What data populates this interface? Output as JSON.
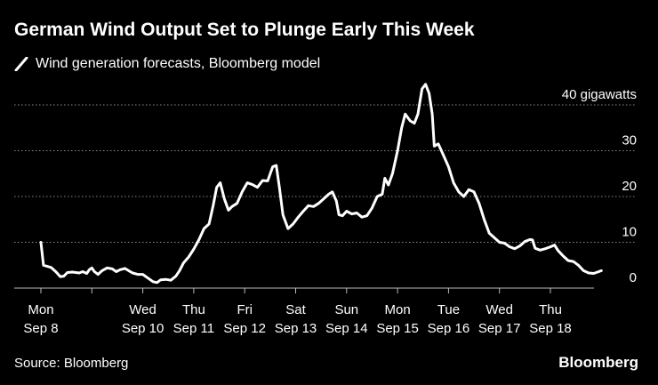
{
  "header": {
    "title": "German Wind Output Set to Plunge Early This Week",
    "legend_label": "Wind generation forecasts, Bloomberg model",
    "line_color": "#ffffff"
  },
  "footer": {
    "source": "Source: Bloomberg",
    "brand": "Bloomberg"
  },
  "chart_data": {
    "type": "line",
    "title": "German Wind Output Set to Plunge Early This Week",
    "legend": [
      "Wind generation forecasts, Bloomberg model"
    ],
    "x_unit": "days since Mon Sep 8",
    "ylim": [
      0,
      40
    ],
    "y_ticks": [
      {
        "value": 0,
        "label": "0"
      },
      {
        "value": 10,
        "label": "10"
      },
      {
        "value": 20,
        "label": "20"
      },
      {
        "value": 30,
        "label": "30"
      },
      {
        "value": 40,
        "label": "40 gigawatts"
      }
    ],
    "x_ticks": [
      {
        "value": 0,
        "line1": "Mon",
        "line2": "Sep 8"
      },
      {
        "value": 1,
        "line1": "",
        "line2": ""
      },
      {
        "value": 2,
        "line1": "Wed",
        "line2": "Sep 10"
      },
      {
        "value": 3,
        "line1": "Thu",
        "line2": "Sep 11"
      },
      {
        "value": 4,
        "line1": "Fri",
        "line2": "Sep 12"
      },
      {
        "value": 5,
        "line1": "Sat",
        "line2": "Sep 13"
      },
      {
        "value": 6,
        "line1": "Sun",
        "line2": "Sep 14"
      },
      {
        "value": 7,
        "line1": "Mon",
        "line2": "Sep 15"
      },
      {
        "value": 8,
        "line1": "Tue",
        "line2": "Sep 16"
      },
      {
        "value": 9,
        "line1": "Wed",
        "line2": "Sep 17"
      },
      {
        "value": 10,
        "line1": "Thu",
        "line2": "Sep 18"
      }
    ],
    "grid": true,
    "series": [
      {
        "name": "Wind generation forecasts, Bloomberg model",
        "points": [
          [
            0.0,
            10.0
          ],
          [
            0.05,
            5.0
          ],
          [
            0.2,
            4.5
          ],
          [
            0.3,
            3.5
          ],
          [
            0.38,
            2.5
          ],
          [
            0.45,
            2.6
          ],
          [
            0.52,
            3.4
          ],
          [
            0.62,
            3.5
          ],
          [
            0.75,
            3.3
          ],
          [
            0.82,
            3.6
          ],
          [
            0.9,
            3.2
          ],
          [
            0.95,
            4.0
          ],
          [
            1.0,
            4.4
          ],
          [
            1.05,
            3.6
          ],
          [
            1.12,
            3.0
          ],
          [
            1.2,
            3.8
          ],
          [
            1.3,
            4.4
          ],
          [
            1.4,
            4.2
          ],
          [
            1.48,
            3.6
          ],
          [
            1.55,
            4.0
          ],
          [
            1.65,
            4.3
          ],
          [
            1.72,
            3.8
          ],
          [
            1.8,
            3.3
          ],
          [
            1.9,
            3.0
          ],
          [
            2.0,
            3.0
          ],
          [
            2.1,
            2.2
          ],
          [
            2.2,
            1.4
          ],
          [
            2.28,
            1.2
          ],
          [
            2.35,
            1.8
          ],
          [
            2.45,
            1.9
          ],
          [
            2.55,
            1.7
          ],
          [
            2.65,
            2.6
          ],
          [
            2.72,
            3.8
          ],
          [
            2.8,
            5.5
          ],
          [
            2.9,
            6.8
          ],
          [
            3.0,
            8.5
          ],
          [
            3.1,
            10.5
          ],
          [
            3.2,
            13.0
          ],
          [
            3.3,
            14.0
          ],
          [
            3.38,
            18.0
          ],
          [
            3.45,
            22.0
          ],
          [
            3.52,
            23.0
          ],
          [
            3.6,
            19.5
          ],
          [
            3.68,
            17.0
          ],
          [
            3.75,
            17.8
          ],
          [
            3.85,
            18.5
          ],
          [
            3.95,
            21.0
          ],
          [
            4.05,
            23.0
          ],
          [
            4.15,
            22.6
          ],
          [
            4.25,
            22.0
          ],
          [
            4.35,
            23.5
          ],
          [
            4.45,
            23.4
          ],
          [
            4.55,
            26.5
          ],
          [
            4.62,
            26.8
          ],
          [
            4.68,
            22.0
          ],
          [
            4.75,
            16.0
          ],
          [
            4.85,
            13.0
          ],
          [
            4.95,
            14.0
          ],
          [
            5.05,
            15.5
          ],
          [
            5.15,
            16.8
          ],
          [
            5.25,
            18.0
          ],
          [
            5.35,
            17.8
          ],
          [
            5.45,
            18.5
          ],
          [
            5.55,
            19.5
          ],
          [
            5.65,
            20.5
          ],
          [
            5.72,
            21.0
          ],
          [
            5.8,
            19.0
          ],
          [
            5.85,
            16.0
          ],
          [
            5.92,
            15.8
          ],
          [
            6.0,
            16.8
          ],
          [
            6.1,
            16.2
          ],
          [
            6.2,
            16.4
          ],
          [
            6.3,
            15.5
          ],
          [
            6.4,
            15.8
          ],
          [
            6.5,
            17.5
          ],
          [
            6.6,
            20.0
          ],
          [
            6.7,
            20.5
          ],
          [
            6.75,
            24.0
          ],
          [
            6.82,
            22.5
          ],
          [
            6.9,
            25.0
          ],
          [
            7.0,
            30.0
          ],
          [
            7.08,
            35.0
          ],
          [
            7.15,
            38.0
          ],
          [
            7.25,
            36.5
          ],
          [
            7.33,
            36.0
          ],
          [
            7.4,
            38.0
          ],
          [
            7.48,
            43.5
          ],
          [
            7.55,
            44.5
          ],
          [
            7.62,
            42.5
          ],
          [
            7.68,
            38.0
          ],
          [
            7.72,
            31.0
          ],
          [
            7.8,
            31.5
          ],
          [
            7.9,
            29.0
          ],
          [
            8.0,
            26.5
          ],
          [
            8.1,
            23.0
          ],
          [
            8.2,
            21.0
          ],
          [
            8.3,
            20.0
          ],
          [
            8.4,
            21.5
          ],
          [
            8.5,
            21.0
          ],
          [
            8.6,
            18.5
          ],
          [
            8.7,
            15.0
          ],
          [
            8.8,
            12.0
          ],
          [
            8.9,
            11.0
          ],
          [
            9.0,
            10.0
          ],
          [
            9.1,
            9.8
          ],
          [
            9.2,
            9.0
          ],
          [
            9.3,
            8.6
          ],
          [
            9.4,
            9.2
          ],
          [
            9.5,
            10.2
          ],
          [
            9.6,
            10.6
          ],
          [
            9.65,
            10.5
          ],
          [
            9.7,
            8.7
          ],
          [
            9.8,
            8.3
          ],
          [
            9.9,
            8.6
          ],
          [
            10.0,
            9.0
          ],
          [
            10.08,
            9.4
          ],
          [
            10.15,
            8.2
          ],
          [
            10.25,
            7.0
          ],
          [
            10.35,
            6.0
          ],
          [
            10.45,
            5.8
          ],
          [
            10.55,
            5.0
          ],
          [
            10.65,
            3.8
          ],
          [
            10.75,
            3.3
          ],
          [
            10.85,
            3.2
          ],
          [
            10.95,
            3.6
          ],
          [
            11.0,
            3.8
          ]
        ]
      }
    ]
  }
}
